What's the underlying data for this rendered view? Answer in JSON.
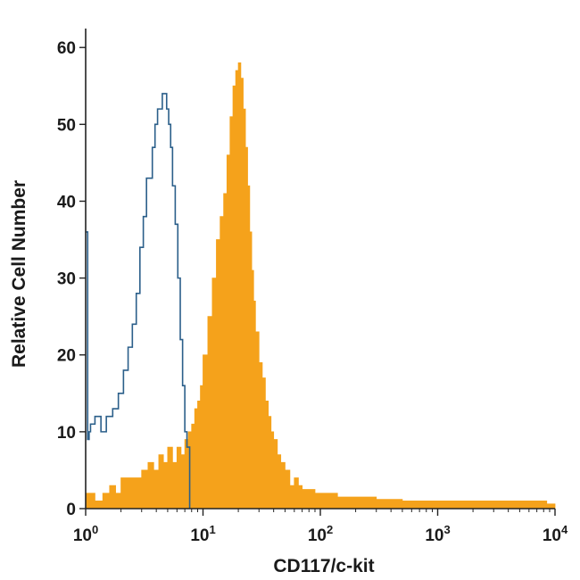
{
  "chart_data": {
    "type": "area",
    "xscale": "log",
    "xlim": [
      1,
      10000
    ],
    "ylim": [
      0,
      62
    ],
    "xlabel": "CD117/c-kit",
    "ylabel": "Relative Cell Number",
    "yticks": [
      0,
      10,
      20,
      30,
      40,
      50,
      60
    ],
    "xticks": [
      {
        "value": 1,
        "base": "10",
        "exp": "0"
      },
      {
        "value": 10,
        "base": "10",
        "exp": "1"
      },
      {
        "value": 100,
        "base": "10",
        "exp": "2"
      },
      {
        "value": 1000,
        "base": "10",
        "exp": "3"
      },
      {
        "value": 10000,
        "base": "10",
        "exp": "4"
      }
    ],
    "grid": false,
    "legend": "none",
    "series": [
      {
        "style": "outline",
        "color": "#2b5f8a",
        "x": [
          1.0,
          1.04,
          1.07,
          1.1,
          1.2,
          1.35,
          1.5,
          1.7,
          1.9,
          2.1,
          2.3,
          2.5,
          2.7,
          2.9,
          3.1,
          3.3,
          3.5,
          3.7,
          3.9,
          4.1,
          4.3,
          4.5,
          4.7,
          4.9,
          5.1,
          5.3,
          5.5,
          5.8,
          6.1,
          6.4,
          6.7,
          7.0,
          7.3,
          7.7
        ],
        "y": [
          36,
          9,
          10,
          11,
          12,
          10,
          12,
          13,
          15,
          18,
          21,
          24,
          28,
          34,
          38,
          43,
          43,
          47,
          50,
          52,
          52,
          54,
          54,
          52,
          50,
          47,
          42,
          37,
          30,
          22,
          16,
          10,
          8,
          0
        ]
      },
      {
        "style": "filled",
        "color": "#f5a21b",
        "x": [
          1.0,
          1.2,
          1.4,
          1.6,
          1.8,
          2.0,
          2.3,
          2.6,
          3.0,
          3.4,
          3.8,
          4.2,
          4.6,
          5.0,
          5.5,
          6.0,
          6.5,
          7.0,
          7.5,
          8.0,
          8.5,
          9.0,
          9.5,
          10,
          11,
          12,
          13,
          14,
          15,
          16,
          17,
          18,
          19,
          20,
          21,
          22,
          23,
          24,
          25,
          26,
          27,
          28,
          30,
          32,
          34,
          36,
          38,
          40,
          43,
          46,
          50,
          55,
          60,
          65,
          70,
          80,
          90,
          100,
          120,
          140,
          160,
          200,
          250,
          300,
          400,
          500,
          700,
          850,
          1000,
          1300,
          1700,
          2000,
          2500,
          3000,
          4000,
          5000,
          6000,
          7000,
          8500,
          10000
        ],
        "y": [
          2,
          1,
          2,
          3,
          2,
          4,
          4,
          4,
          5,
          6,
          5,
          7,
          6,
          8,
          6,
          8,
          7,
          9,
          10,
          11,
          13,
          14,
          16,
          20,
          25,
          30,
          35,
          38,
          41,
          46,
          51,
          55,
          57,
          58,
          56,
          52,
          47,
          42,
          36,
          31,
          27,
          23,
          19,
          17,
          14,
          12,
          10,
          9,
          7,
          6,
          5,
          3,
          4,
          3,
          2.5,
          2.5,
          2,
          2,
          2,
          1.5,
          1.5,
          1.5,
          1.5,
          1.2,
          1.2,
          1,
          1,
          1,
          1,
          1,
          1,
          1,
          1,
          1,
          1,
          1,
          1,
          1,
          0.6,
          0
        ]
      }
    ]
  }
}
